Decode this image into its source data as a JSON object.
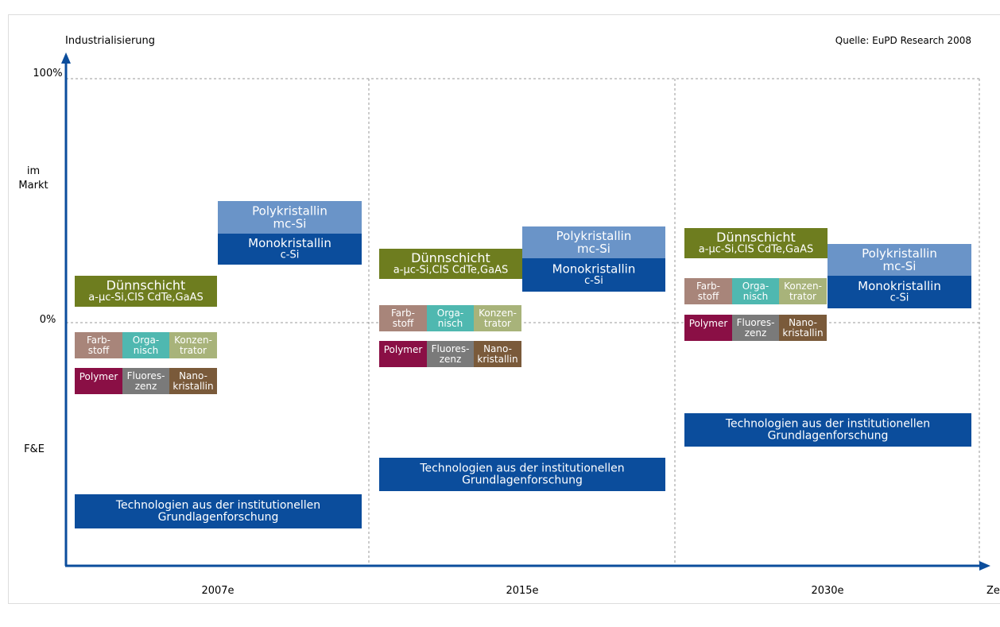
{
  "y_axis_label": "Industrialisierung",
  "x_axis_label": "Zeit",
  "source": "Quelle: EuPD Research 2008",
  "y_levels": [
    [
      "100%"
    ],
    [
      "im",
      "Markt"
    ],
    [
      "0%"
    ],
    [
      "F&E"
    ]
  ],
  "periods": [
    {
      "label": "2007e",
      "boxes": [
        {
          "lines": [
            "Polykristallin",
            "mc-Si"
          ]
        },
        {
          "lines": [
            "Monokristallin",
            "c-Si"
          ]
        },
        {
          "lines": [
            "Dünnschicht",
            "a-µc-Si,CIS CdTe,GaAS"
          ]
        },
        {
          "lines": [
            "Farb-",
            "stoff"
          ]
        },
        {
          "lines": [
            "Orga-",
            "nisch"
          ]
        },
        {
          "lines": [
            "Konzen-",
            "trator"
          ]
        },
        {
          "lines": [
            "Polymer"
          ]
        },
        {
          "lines": [
            "Fluores-",
            "zenz"
          ]
        },
        {
          "lines": [
            "Nano-",
            "kristallin"
          ]
        },
        {
          "lines": [
            "Technologien aus der institutionellen",
            "Grundlagenforschung"
          ]
        }
      ]
    },
    {
      "label": "2015e",
      "boxes": [
        {
          "lines": [
            "Polykristallin",
            "mc-Si"
          ]
        },
        {
          "lines": [
            "Monokristallin",
            "c-Si"
          ]
        },
        {
          "lines": [
            "Dünnschicht",
            "a-µc-Si,CIS CdTe,GaAS"
          ]
        },
        {
          "lines": [
            "Farb-",
            "stoff"
          ]
        },
        {
          "lines": [
            "Orga-",
            "nisch"
          ]
        },
        {
          "lines": [
            "Konzen-",
            "trator"
          ]
        },
        {
          "lines": [
            "Polymer"
          ]
        },
        {
          "lines": [
            "Fluores-",
            "zenz"
          ]
        },
        {
          "lines": [
            "Nano-",
            "kristallin"
          ]
        },
        {
          "lines": [
            "Technologien aus der institutionellen",
            "Grundlagenforschung"
          ]
        }
      ]
    },
    {
      "label": "2030e",
      "boxes": [
        {
          "lines": [
            "Polykristallin",
            "mc-Si"
          ]
        },
        {
          "lines": [
            "Monokristallin",
            "c-Si"
          ]
        },
        {
          "lines": [
            "Dünnschicht",
            "a-µc-Si,CIS CdTe,GaAS"
          ]
        },
        {
          "lines": [
            "Farb-",
            "stoff"
          ]
        },
        {
          "lines": [
            "Orga-",
            "nisch"
          ]
        },
        {
          "lines": [
            "Konzen-",
            "trator"
          ]
        },
        {
          "lines": [
            "Polymer"
          ]
        },
        {
          "lines": [
            "Fluores-",
            "zenz"
          ]
        },
        {
          "lines": [
            "Nano-",
            "kristallin"
          ]
        },
        {
          "lines": [
            "Technologien aus der institutionellen",
            "Grundlagenforschung"
          ]
        }
      ]
    }
  ]
}
